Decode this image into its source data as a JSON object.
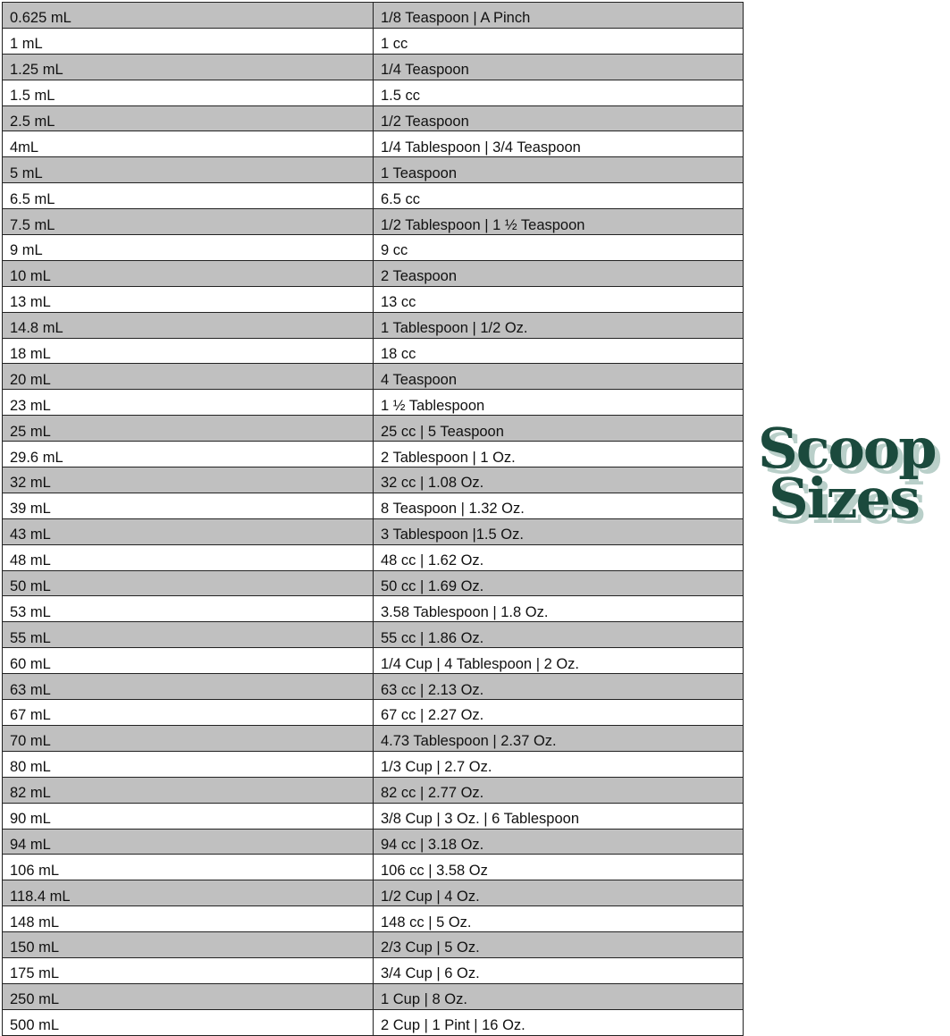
{
  "table": {
    "rows": [
      [
        "0.625 mL",
        "1/8 Teaspoon | A Pinch"
      ],
      [
        "1 mL",
        "1 cc"
      ],
      [
        "1.25 mL",
        "1/4 Teaspoon"
      ],
      [
        "1.5 mL",
        "1.5 cc"
      ],
      [
        "2.5 mL",
        "1/2 Teaspoon"
      ],
      [
        "4mL",
        "1/4 Tablespoon | 3/4 Teaspoon"
      ],
      [
        "5 mL",
        "1 Teaspoon"
      ],
      [
        "6.5 mL",
        "6.5 cc"
      ],
      [
        "7.5 mL",
        "1/2 Tablespoon | 1 ½ Teaspoon"
      ],
      [
        "9 mL",
        "9 cc"
      ],
      [
        "10 mL",
        "2 Teaspoon"
      ],
      [
        "13 mL",
        "13 cc"
      ],
      [
        "14.8 mL",
        "1 Tablespoon | 1/2 Oz."
      ],
      [
        "18 mL",
        "18 cc"
      ],
      [
        "20 mL",
        "4 Teaspoon"
      ],
      [
        "23 mL",
        "1 ½ Tablespoon"
      ],
      [
        "25 mL",
        "25 cc | 5 Teaspoon"
      ],
      [
        "29.6 mL",
        "2 Tablespoon | 1 Oz."
      ],
      [
        "32 mL",
        "32 cc | 1.08 Oz."
      ],
      [
        "39 mL",
        "8 Teaspoon | 1.32 Oz."
      ],
      [
        "43 mL",
        "3 Tablespoon |1.5 Oz."
      ],
      [
        "48 mL",
        "48 cc | 1.62 Oz."
      ],
      [
        "50 mL",
        "50 cc | 1.69 Oz."
      ],
      [
        "53 mL",
        "3.58 Tablespoon | 1.8 Oz."
      ],
      [
        "55 mL",
        "55 cc | 1.86 Oz."
      ],
      [
        "60 mL",
        "1/4 Cup | 4 Tablespoon | 2 Oz."
      ],
      [
        "63 mL",
        "63 cc | 2.13 Oz."
      ],
      [
        "67 mL",
        "67 cc | 2.27 Oz."
      ],
      [
        "70 mL",
        "4.73 Tablespoon | 2.37 Oz."
      ],
      [
        "80 mL",
        "1/3 Cup | 2.7 Oz."
      ],
      [
        "82 mL",
        "82 cc | 2.77 Oz."
      ],
      [
        "90 mL",
        "3/8 Cup | 3 Oz. | 6 Tablespoon"
      ],
      [
        "94 mL",
        "94 cc | 3.18 Oz."
      ],
      [
        "106 mL",
        "106 cc | 3.58 Oz"
      ],
      [
        "118.4 mL",
        "1/2 Cup | 4 Oz."
      ],
      [
        "148 mL",
        "148 cc | 5 Oz."
      ],
      [
        "150 mL",
        "2/3 Cup | 5 Oz."
      ],
      [
        "175 mL",
        "3/4 Cup | 6 Oz."
      ],
      [
        "250 mL",
        "1 Cup | 8 Oz."
      ],
      [
        "500 mL",
        "2 Cup | 1 Pint | 16 Oz."
      ]
    ]
  },
  "logo": {
    "line1": "Scoop",
    "line2": "Sizes",
    "color": "#1b4a3d",
    "shadow_color": "#b9cfc9"
  },
  "colors": {
    "stripe": "#c0c0c0",
    "border": "#222222"
  }
}
